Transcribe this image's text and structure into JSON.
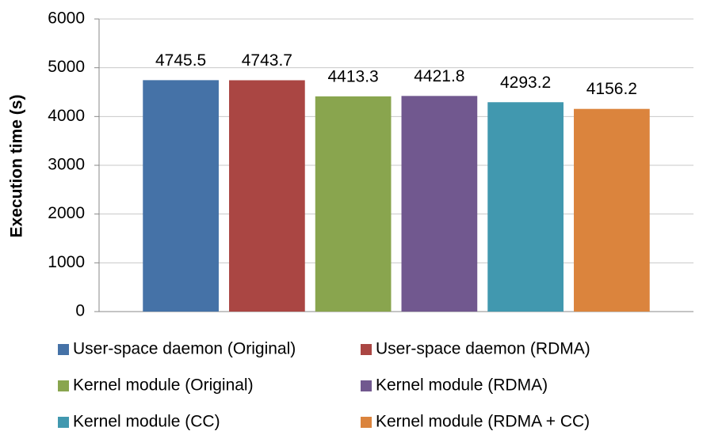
{
  "chart_data": {
    "type": "bar",
    "y_label": "Execution time (s)",
    "categories": [
      null
    ],
    "series": [
      {
        "name": "User-space daemon (Original)",
        "color": "#4572a7",
        "values": [
          4745.5
        ]
      },
      {
        "name": "User-space daemon (RDMA)",
        "color": "#aa4643",
        "values": [
          4743.7
        ]
      },
      {
        "name": "Kernel module (Original)",
        "color": "#89a54e",
        "values": [
          4413.3
        ]
      },
      {
        "name": "Kernel module (RDMA)",
        "color": "#71588f",
        "values": [
          4421.8
        ]
      },
      {
        "name": "Kernel module (CC)",
        "color": "#4198af",
        "values": [
          4293.2
        ]
      },
      {
        "name": "Kernel module (RDMA + CC)",
        "color": "#db843d",
        "values": [
          4156.2
        ]
      }
    ],
    "ylim": [
      0,
      6000
    ],
    "yticks": [
      0,
      1000,
      2000,
      3000,
      4000,
      5000,
      6000
    ],
    "grid": true,
    "legend": "bottom"
  }
}
